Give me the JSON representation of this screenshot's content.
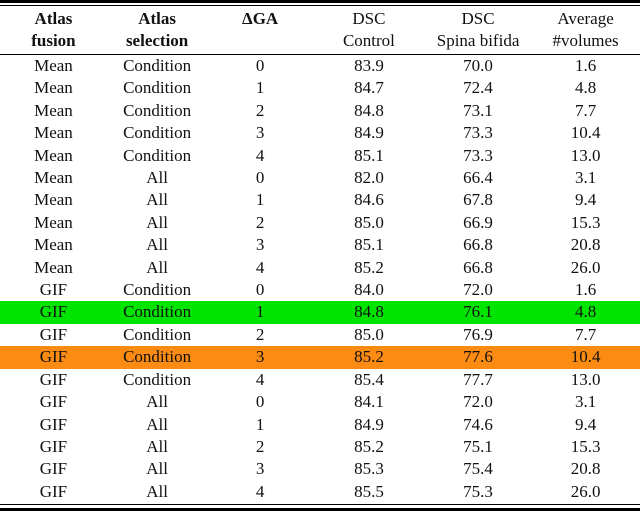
{
  "table": {
    "header": {
      "columns": [
        {
          "line1": "Atlas",
          "line2": "fusion"
        },
        {
          "line1": "Atlas",
          "line2": "selection"
        },
        {
          "line1": "ΔGA",
          "line2": ""
        },
        {
          "line1": "DSC",
          "line2": "Control"
        },
        {
          "line1": "DSC",
          "line2": "Spina bifida"
        },
        {
          "line1": "Average",
          "line2": "#volumes"
        }
      ]
    },
    "highlight_colors": {
      "green": "#00e400",
      "orange": "#fb8b12"
    },
    "rows": [
      {
        "atlas_fusion": "Mean",
        "atlas_selection": "Condition",
        "delta_ga": "0",
        "dsc_control": "83.9",
        "dsc_spina_bifida": "70.0",
        "avg_volumes": "1.6",
        "highlight": ""
      },
      {
        "atlas_fusion": "Mean",
        "atlas_selection": "Condition",
        "delta_ga": "1",
        "dsc_control": "84.7",
        "dsc_spina_bifida": "72.4",
        "avg_volumes": "4.8",
        "highlight": ""
      },
      {
        "atlas_fusion": "Mean",
        "atlas_selection": "Condition",
        "delta_ga": "2",
        "dsc_control": "84.8",
        "dsc_spina_bifida": "73.1",
        "avg_volumes": "7.7",
        "highlight": ""
      },
      {
        "atlas_fusion": "Mean",
        "atlas_selection": "Condition",
        "delta_ga": "3",
        "dsc_control": "84.9",
        "dsc_spina_bifida": "73.3",
        "avg_volumes": "10.4",
        "highlight": ""
      },
      {
        "atlas_fusion": "Mean",
        "atlas_selection": "Condition",
        "delta_ga": "4",
        "dsc_control": "85.1",
        "dsc_spina_bifida": "73.3",
        "avg_volumes": "13.0",
        "highlight": ""
      },
      {
        "atlas_fusion": "Mean",
        "atlas_selection": "All",
        "delta_ga": "0",
        "dsc_control": "82.0",
        "dsc_spina_bifida": "66.4",
        "avg_volumes": "3.1",
        "highlight": ""
      },
      {
        "atlas_fusion": "Mean",
        "atlas_selection": "All",
        "delta_ga": "1",
        "dsc_control": "84.6",
        "dsc_spina_bifida": "67.8",
        "avg_volumes": "9.4",
        "highlight": ""
      },
      {
        "atlas_fusion": "Mean",
        "atlas_selection": "All",
        "delta_ga": "2",
        "dsc_control": "85.0",
        "dsc_spina_bifida": "66.9",
        "avg_volumes": "15.3",
        "highlight": ""
      },
      {
        "atlas_fusion": "Mean",
        "atlas_selection": "All",
        "delta_ga": "3",
        "dsc_control": "85.1",
        "dsc_spina_bifida": "66.8",
        "avg_volumes": "20.8",
        "highlight": ""
      },
      {
        "atlas_fusion": "Mean",
        "atlas_selection": "All",
        "delta_ga": "4",
        "dsc_control": "85.2",
        "dsc_spina_bifida": "66.8",
        "avg_volumes": "26.0",
        "highlight": ""
      },
      {
        "atlas_fusion": "GIF",
        "atlas_selection": "Condition",
        "delta_ga": "0",
        "dsc_control": "84.0",
        "dsc_spina_bifida": "72.0",
        "avg_volumes": "1.6",
        "highlight": ""
      },
      {
        "atlas_fusion": "GIF",
        "atlas_selection": "Condition",
        "delta_ga": "1",
        "dsc_control": "84.8",
        "dsc_spina_bifida": "76.1",
        "avg_volumes": "4.8",
        "highlight": "green"
      },
      {
        "atlas_fusion": "GIF",
        "atlas_selection": "Condition",
        "delta_ga": "2",
        "dsc_control": "85.0",
        "dsc_spina_bifida": "76.9",
        "avg_volumes": "7.7",
        "highlight": ""
      },
      {
        "atlas_fusion": "GIF",
        "atlas_selection": "Condition",
        "delta_ga": "3",
        "dsc_control": "85.2",
        "dsc_spina_bifida": "77.6",
        "avg_volumes": "10.4",
        "highlight": "orange"
      },
      {
        "atlas_fusion": "GIF",
        "atlas_selection": "Condition",
        "delta_ga": "4",
        "dsc_control": "85.4",
        "dsc_spina_bifida": "77.7",
        "avg_volumes": "13.0",
        "highlight": ""
      },
      {
        "atlas_fusion": "GIF",
        "atlas_selection": "All",
        "delta_ga": "0",
        "dsc_control": "84.1",
        "dsc_spina_bifida": "72.0",
        "avg_volumes": "3.1",
        "highlight": ""
      },
      {
        "atlas_fusion": "GIF",
        "atlas_selection": "All",
        "delta_ga": "1",
        "dsc_control": "84.9",
        "dsc_spina_bifida": "74.6",
        "avg_volumes": "9.4",
        "highlight": ""
      },
      {
        "atlas_fusion": "GIF",
        "atlas_selection": "All",
        "delta_ga": "2",
        "dsc_control": "85.2",
        "dsc_spina_bifida": "75.1",
        "avg_volumes": "15.3",
        "highlight": ""
      },
      {
        "atlas_fusion": "GIF",
        "atlas_selection": "All",
        "delta_ga": "3",
        "dsc_control": "85.3",
        "dsc_spina_bifida": "75.4",
        "avg_volumes": "20.8",
        "highlight": ""
      },
      {
        "atlas_fusion": "GIF",
        "atlas_selection": "All",
        "delta_ga": "4",
        "dsc_control": "85.5",
        "dsc_spina_bifida": "75.3",
        "avg_volumes": "26.0",
        "highlight": ""
      }
    ]
  }
}
